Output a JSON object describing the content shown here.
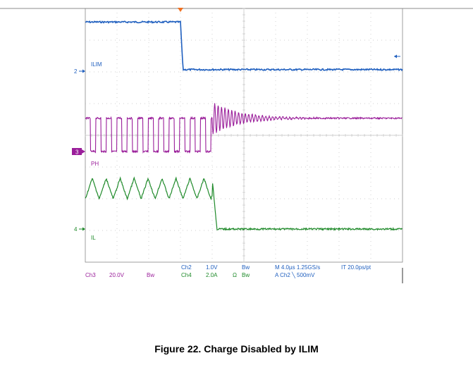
{
  "figure_caption": "Figure 22. Charge Disabled by ILIM",
  "colors": {
    "ch2": "#1f5fbf",
    "ch3": "#9a1e9a",
    "ch4": "#1f8a2a",
    "trigger": "#f07020",
    "grid": "#c0c0c0",
    "frame": "#888888"
  },
  "chart_data": {
    "type": "line",
    "title": "",
    "grid": true,
    "x_divisions": 10,
    "y_divisions": 8,
    "time_per_div": "4.0µs",
    "series": [
      {
        "name": "ILIM",
        "channel": "Ch2",
        "marker_label": "2",
        "scale": "1.0V",
        "coupling": "Bw",
        "waveform": "step",
        "high_div": 1.55,
        "low_div": 0.05,
        "step_time_div": 3.0,
        "step_end_div": 3.08
      },
      {
        "name": "PH",
        "channel": "Ch3",
        "marker_label": "3",
        "scale": "20.0V",
        "coupling": "Bw",
        "waveform": "switching",
        "high_div": 1.05,
        "low_div": 0.0,
        "period_div": 0.33,
        "stop_time_div": 4.0,
        "ring_settle_div": 1.05,
        "ring_decay_divs": 2.5
      },
      {
        "name": "IL",
        "channel": "Ch4",
        "marker_label": "4",
        "scale": "2.0A",
        "coupling": "Ω Bw",
        "waveform": "triangle",
        "peak_div": 1.6,
        "valley_div": 0.95,
        "period_div": 0.44,
        "stop_time_div": 4.0,
        "fall_end_div": 4.15,
        "final_div": 0.0
      }
    ],
    "horizontal": {
      "timebase": "M 4.0µs",
      "sample_rate": "1.25GS/s",
      "interpolation": "IT 20.0ps/pt",
      "trigger_source": "A  Ch2",
      "trigger_slope": "\\",
      "trigger_level": "500mV"
    }
  },
  "readout": {
    "ch3_name": "Ch3",
    "ch3_scale": "20.0V",
    "ch3_bw": "Bw",
    "ch2_name": "Ch2",
    "ch2_scale": "1.0V",
    "ch2_bw": "Bw",
    "ch4_name": "Ch4",
    "ch4_scale": "2.0A",
    "ch4_ohm": "Ω",
    "ch4_bw": "Bw",
    "horiz_line1": "M 4.0µs  1.25GS/s",
    "horiz_it": "IT 20.0ps/pt",
    "horiz_line2": "A  Ch2  ╲  500mV"
  }
}
